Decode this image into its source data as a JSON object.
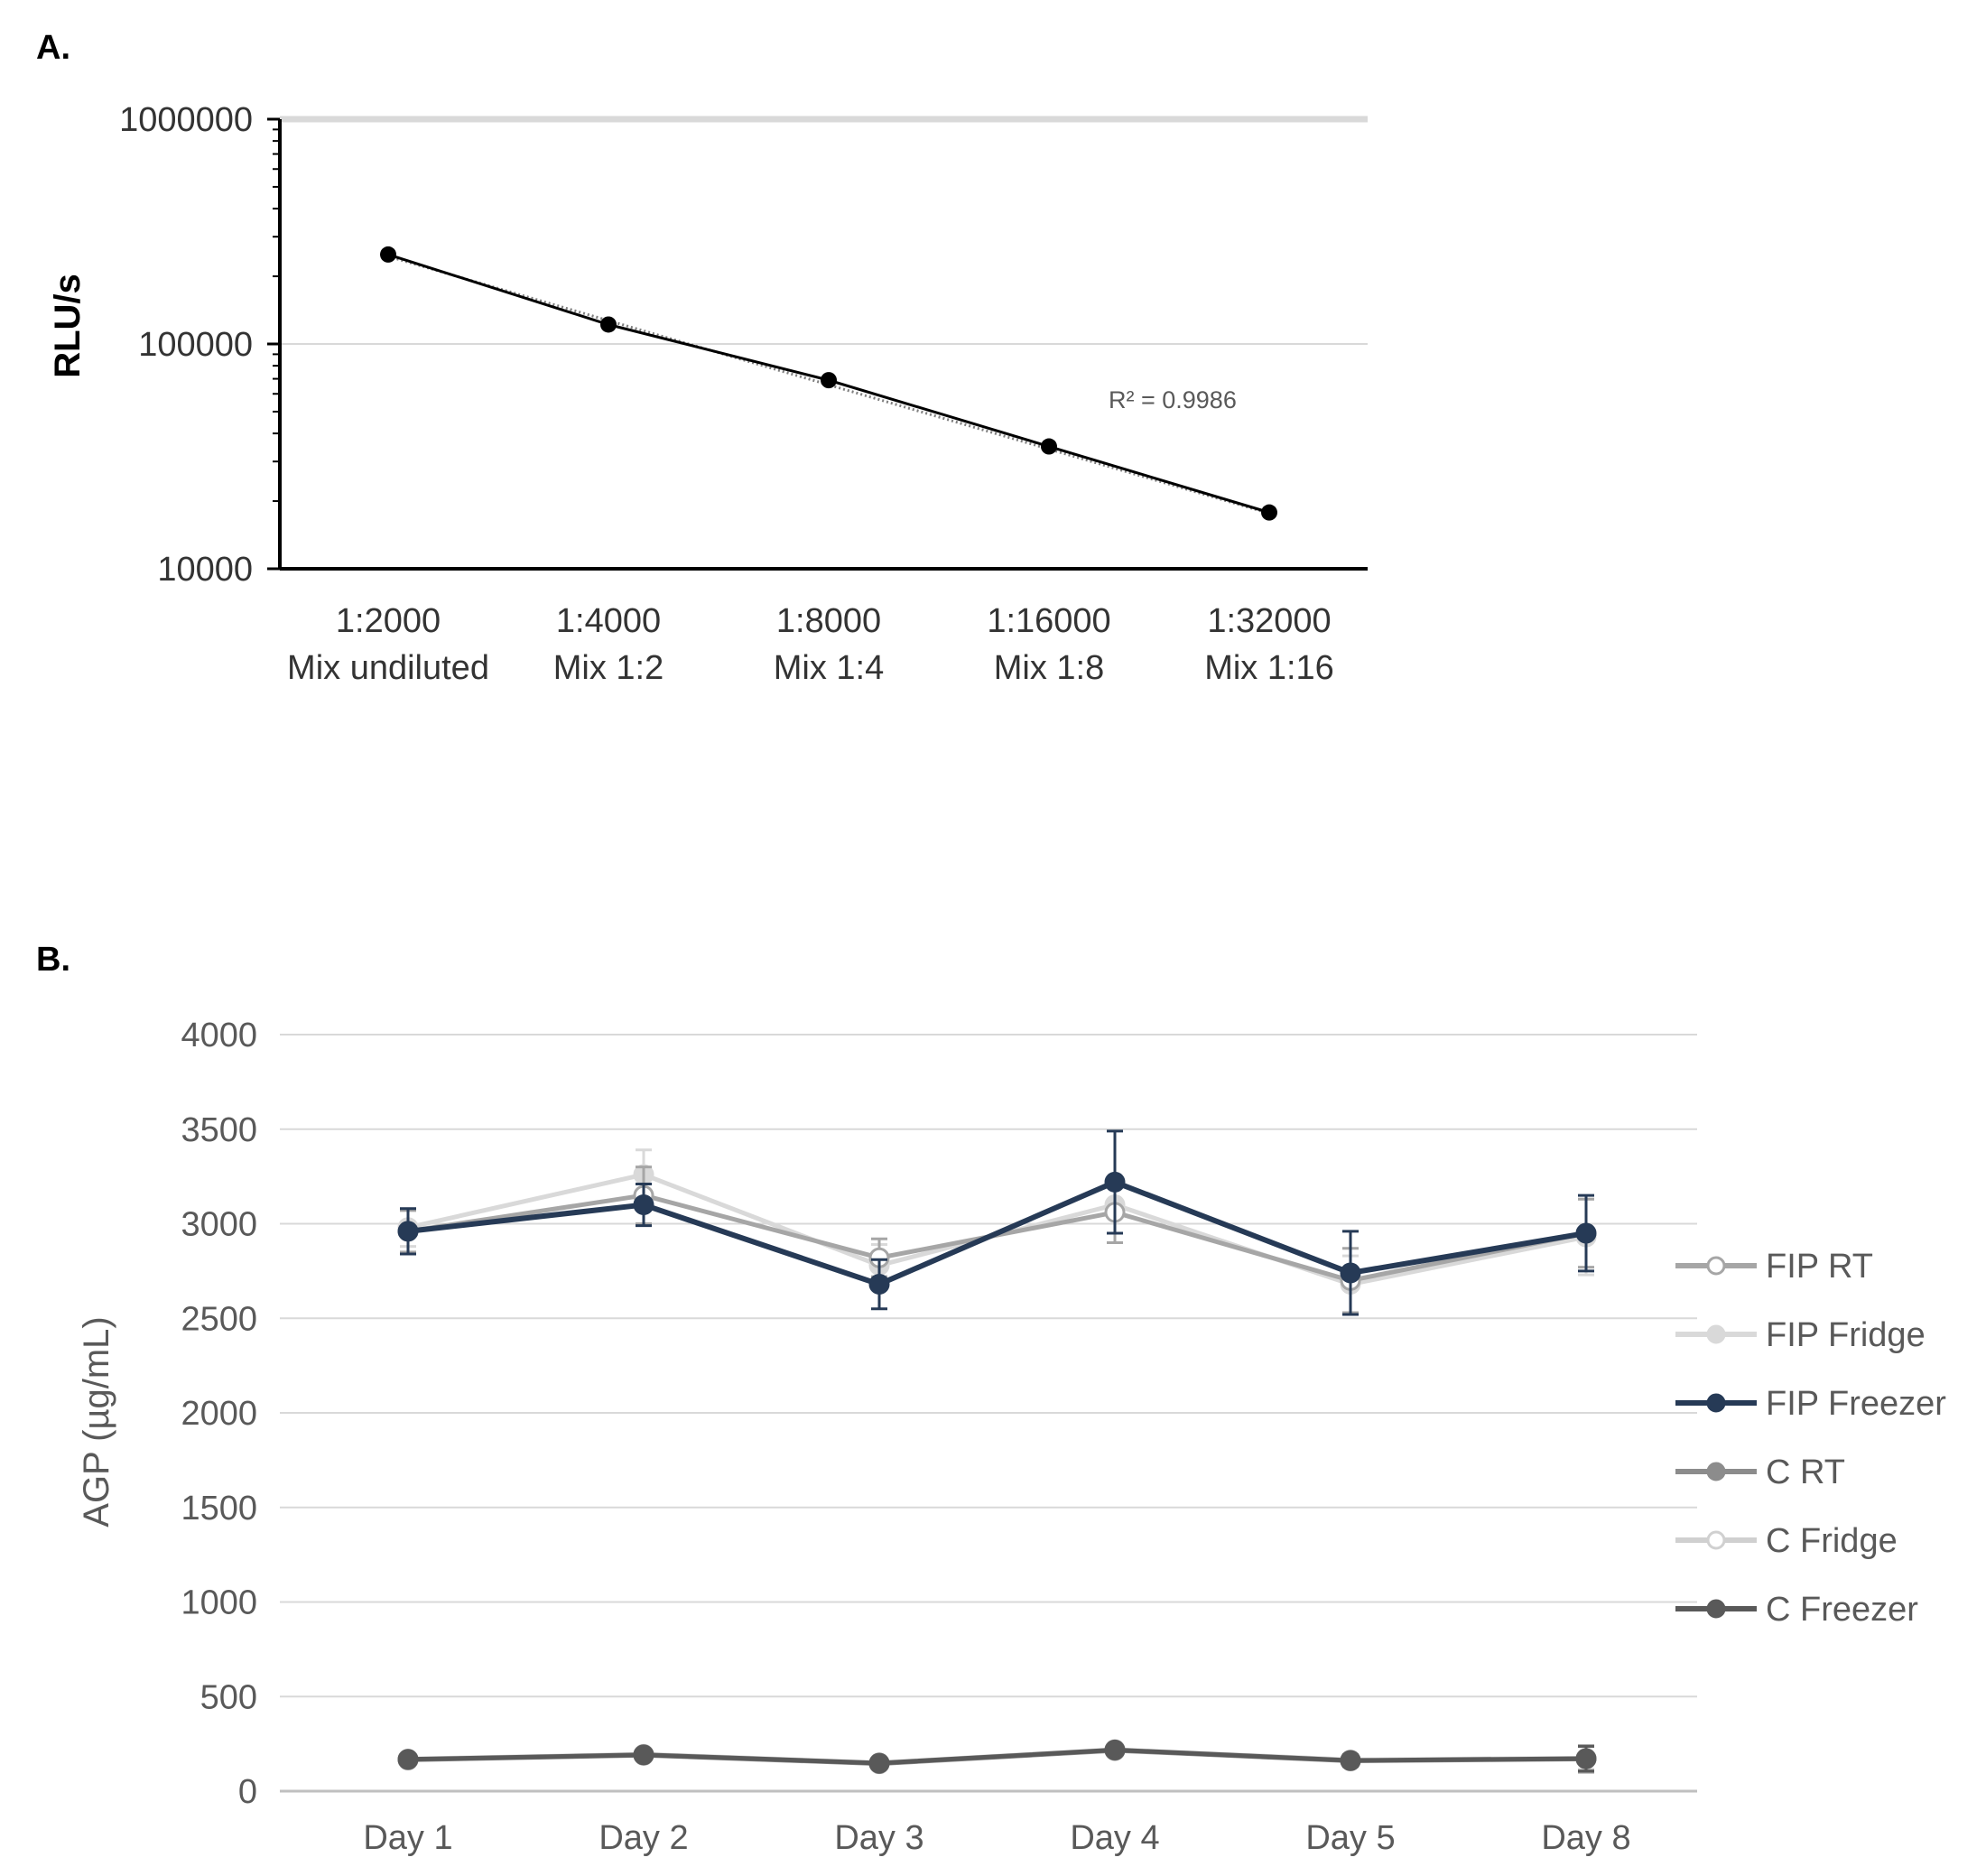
{
  "figure": {
    "label_a": "A.",
    "label_b": "B."
  },
  "chart_data": [
    {
      "type": "line",
      "panel": "A.",
      "yscale": "log",
      "ylabel": "RLU/s",
      "ylim": [
        10000,
        1000000
      ],
      "yticks": [
        {
          "value": 1000000,
          "label": "1000000"
        },
        {
          "value": 100000,
          "label": "100000"
        },
        {
          "value": 10000,
          "label": "10000"
        }
      ],
      "categories": [
        {
          "line1": "1:2000",
          "line2": "Mix undiluted"
        },
        {
          "line1": "1:4000",
          "line2": "Mix 1:2"
        },
        {
          "line1": "1:8000",
          "line2": "Mix 1:4"
        },
        {
          "line1": "1:16000",
          "line2": "Mix 1:8"
        },
        {
          "line1": "1:32000",
          "line2": "Mix 1:16"
        }
      ],
      "series": [
        {
          "name": "RLU/s",
          "color": "#000000",
          "values": [
            250000,
            122000,
            69000,
            35000,
            17800
          ]
        }
      ],
      "trendline": {
        "type": "exponential",
        "style": "dotted",
        "color": "#7f7f7f"
      },
      "annotation": "R² = 0.9986",
      "grid": true
    },
    {
      "type": "line",
      "panel": "B.",
      "ylabel": "AGP (µg/mL)",
      "ylim": [
        0,
        4000
      ],
      "yticks": [
        "0",
        "500",
        "1000",
        "1500",
        "2000",
        "2500",
        "3000",
        "3500",
        "4000"
      ],
      "categories": [
        "Day 1",
        "Day 2",
        "Day 3",
        "Day 4",
        "Day 5",
        "Day 8"
      ],
      "grid": true,
      "legend_position": "right",
      "series": [
        {
          "name": "FIP RT",
          "color": "#a6a6a6",
          "marker": "open-circle",
          "values": [
            2960,
            3150,
            2820,
            3060,
            2700,
            2950
          ],
          "errors": [
            110,
            150,
            100,
            160,
            170,
            180
          ]
        },
        {
          "name": "FIP Fridge",
          "color": "#d9d9d9",
          "marker": "filled-circle",
          "values": [
            2980,
            3260,
            2780,
            3100,
            2680,
            2930
          ],
          "errors": [
            100,
            130,
            110,
            150,
            150,
            200
          ]
        },
        {
          "name": "FIP Freezer",
          "color": "#263a56",
          "marker": "filled-circle",
          "values": [
            2960,
            3100,
            2680,
            3220,
            2740,
            2950
          ],
          "errors": [
            120,
            110,
            130,
            270,
            220,
            200
          ]
        },
        {
          "name": "C RT",
          "color": "#8c8c8c",
          "marker": "filled-circle",
          "values": [
            165,
            190,
            145,
            215,
            160,
            170
          ],
          "errors": [
            20,
            20,
            20,
            25,
            30,
            70
          ]
        },
        {
          "name": "C Fridge",
          "color": "#d0d0d0",
          "marker": "open-circle",
          "values": [
            170,
            195,
            150,
            220,
            165,
            175
          ],
          "errors": [
            20,
            20,
            20,
            25,
            30,
            60
          ]
        },
        {
          "name": "C Freezer",
          "color": "#595959",
          "marker": "filled-circle",
          "values": [
            168,
            192,
            148,
            218,
            162,
            172
          ],
          "errors": [
            20,
            20,
            20,
            25,
            30,
            65
          ]
        }
      ]
    }
  ]
}
